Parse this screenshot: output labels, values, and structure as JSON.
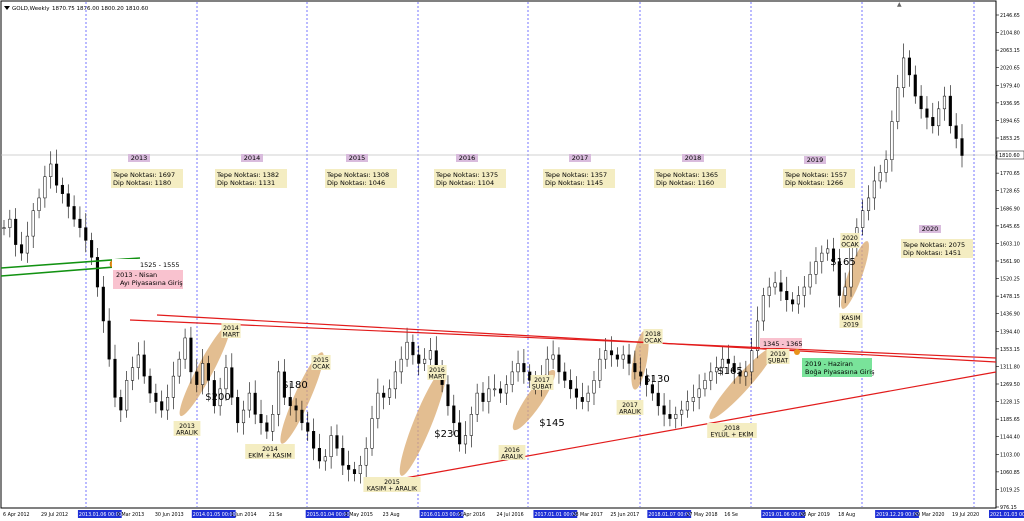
{
  "header": {
    "symbol": "GOLD,Weekly",
    "ohlc": "1870.75 1876.00 1800.20 1810.60"
  },
  "price_tag": "1810.60",
  "chart_data": {
    "type": "candlestick",
    "symbol": "GOLD",
    "timeframe": "Weekly",
    "y_axis_ticks": [
      "2146.65",
      "2104.80",
      "2063.15",
      "2020.65",
      "1979.40",
      "1936.95",
      "1894.65",
      "1853.25",
      "1811.20",
      "1770.65",
      "1728.65",
      "1686.90",
      "1645.65",
      "1603.10",
      "1561.90",
      "1520.25",
      "1478.15",
      "1436.90",
      "1394.40",
      "1353.15",
      "1311.80",
      "1269.50",
      "1228.15",
      "1185.65",
      "1144.40",
      "1103.00",
      "1060.85",
      "1019.25",
      "976.15"
    ],
    "x_axis_ticks": [
      "6 Apr 2012",
      "29 Jul 2012",
      "2013.01.06 00:00",
      "0 Mar 2013",
      "30 Jun 2013",
      "2014.01.05 00:00",
      "1 Jun 2014",
      "21 Se",
      "2015.01.04 00:00",
      "3 May 2015",
      "23 Aug",
      "2016.01.03 00:00",
      "5 Apr 2016",
      "24 Jul 2016",
      "2017.01.01 00:00",
      "28 Mar 2017",
      "25 Jun 2017",
      "2018.01.07 00:00",
      "27 May 2018",
      "16 Se",
      "2019.01.06 00:00",
      "28 Apr 2019",
      "18 Aug",
      "2019.12.29 00:00",
      "29 Mar 2020",
      "19 Jul 2020",
      "2021.01.03 00:00"
    ],
    "ylim": [
      960,
      2160
    ],
    "years": [
      {
        "year": "2013",
        "top": "Tepe Noktası: 1697",
        "bottom": "Dip Noktası: 1180"
      },
      {
        "year": "2014",
        "top": "Tepe Noktası: 1382",
        "bottom": "Dip Noktası: 1131"
      },
      {
        "year": "2015",
        "top": "Tepe Noktası: 1308",
        "bottom": "Dip Noktası: 1046"
      },
      {
        "year": "2016",
        "top": "Tepe Noktası: 1375",
        "bottom": "Dip Noktası: 1104"
      },
      {
        "year": "2017",
        "top": "Tepe Noktası: 1357",
        "bottom": "Dip Noktası: 1145"
      },
      {
        "year": "2018",
        "top": "Tepe Noktası: 1365",
        "bottom": "Dip Noktası: 1160"
      },
      {
        "year": "2019",
        "top": "Tepe Noktası: 1557",
        "bottom": "Dip Noktası: 1266"
      },
      {
        "year": "2020",
        "top": "Tepe Noktası: 2075",
        "bottom": "Dip Noktası: 1451"
      }
    ],
    "moves": [
      {
        "value": "$200",
        "from": "2013 ARALIK",
        "to": "2014 MART"
      },
      {
        "value": "$180",
        "from": "2014 EKİM + KASIM",
        "to": "2015 OCAK"
      },
      {
        "value": "$230",
        "from": "2015 KASIM + ARALIK",
        "to": "2016 MART"
      },
      {
        "value": "$145",
        "from": "2016 ARALIK",
        "to": "2017 ŞUBAT"
      },
      {
        "value": "$130",
        "from": "2017 ARALIK",
        "to": "2018 OCAK"
      },
      {
        "value": "$165",
        "from": "2018 EYLÜL + EKİM",
        "to": "2019 ŞUBAT"
      },
      {
        "value": "$165",
        "from": "KASIM 2019",
        "to": "2020 OCAK"
      }
    ],
    "annotations": {
      "bear_zone": "1525 - 1555",
      "bear_entry": [
        "2013 - Nisan",
        "Ayı Piyasasına Giriş"
      ],
      "bull_zone": "1345 - 1365",
      "bull_entry": [
        "2019 - Haziran",
        "Boğa Piyasasına Giriş"
      ]
    },
    "prices": [
      1640,
      1660,
      1600,
      1580,
      1620,
      1680,
      1710,
      1760,
      1790,
      1740,
      1720,
      1690,
      1660,
      1640,
      1610,
      1570,
      1500,
      1420,
      1330,
      1240,
      1210,
      1280,
      1310,
      1340,
      1290,
      1250,
      1230,
      1210,
      1240,
      1290,
      1330,
      1380,
      1300,
      1270,
      1320,
      1280,
      1220,
      1260,
      1310,
      1240,
      1180,
      1210,
      1250,
      1200,
      1180,
      1160,
      1200,
      1300,
      1240,
      1220,
      1210,
      1180,
      1160,
      1120,
      1090,
      1100,
      1150,
      1120,
      1080,
      1070,
      1060,
      1080,
      1120,
      1190,
      1250,
      1240,
      1260,
      1300,
      1330,
      1370,
      1340,
      1320,
      1330,
      1350,
      1310,
      1270,
      1220,
      1180,
      1130,
      1150,
      1200,
      1250,
      1230,
      1260,
      1260,
      1250,
      1270,
      1300,
      1320,
      1300,
      1280,
      1270,
      1290,
      1330,
      1340,
      1300,
      1280,
      1260,
      1240,
      1230,
      1250,
      1280,
      1330,
      1350,
      1340,
      1330,
      1340,
      1320,
      1300,
      1290,
      1270,
      1250,
      1220,
      1200,
      1190,
      1200,
      1210,
      1230,
      1240,
      1260,
      1280,
      1300,
      1310,
      1330,
      1320,
      1300,
      1290,
      1300,
      1350,
      1420,
      1480,
      1500,
      1510,
      1490,
      1470,
      1460,
      1480,
      1500,
      1530,
      1560,
      1580,
      1590,
      1560,
      1480,
      1500,
      1600,
      1640,
      1680,
      1710,
      1750,
      1770,
      1800,
      1890,
      1970,
      2040,
      2000,
      1950,
      1920,
      1900,
      1880,
      1920,
      1950,
      1880,
      1850,
      1810
    ]
  }
}
